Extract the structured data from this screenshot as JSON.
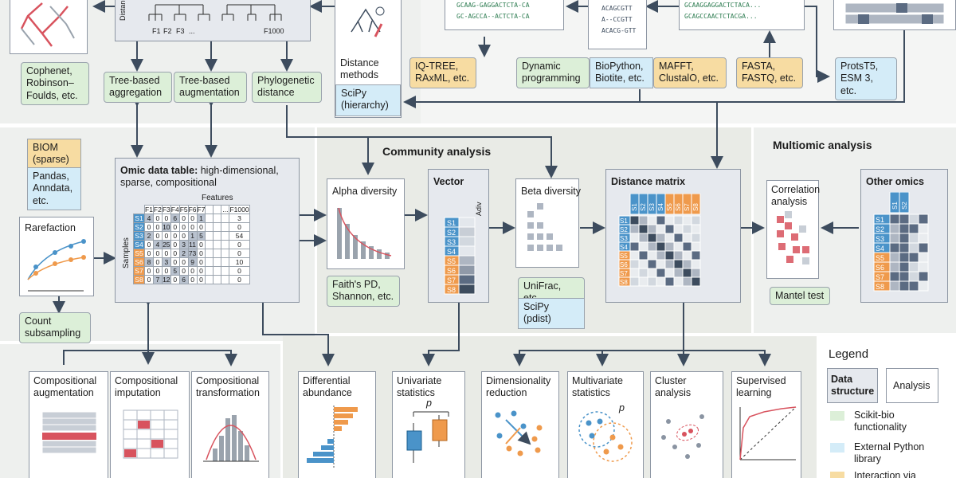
{
  "colors": {
    "green": "#dcefd8",
    "blue": "#d4ecf8",
    "orange": "#f7dca2",
    "panel": "#eef0ee",
    "sample_blue": "#4a93c9",
    "sample_orange": "#ef9a4c",
    "red": "#d8535e"
  },
  "top": {
    "distance_axis": "Distance",
    "tree_labels": [
      "F1",
      "F2",
      "F3",
      "...",
      "F1000"
    ],
    "seq_align_1": [
      "GCAAG-GAGGACTCTA-CA",
      "GC-AGCCA--ACTCTA-CA"
    ],
    "seq_align_2": [
      "ACAGCGTT",
      "A--CCGTT",
      "ACACG-GTT"
    ],
    "seq_raw": [
      "GCAAGGAGGACTCTACA...",
      "GCAGCCAACTCTACGA..."
    ],
    "cophenet": "Cophenet, Robinson–Foulds, etc.",
    "tree_aggregation": "Tree-based aggregation",
    "tree_augmentation": "Tree-based augmentation",
    "phylo_distance": "Phylogenetic distance",
    "distance_methods": "Distance methods",
    "scipy_hierarchy": "SciPy (hierarchy)",
    "iqtree": "IQ-TREE, RAxML, etc.",
    "dynamic_programming": "Dynamic programming",
    "biopython": "BioPython, Biotite, etc.",
    "mafft": "MAFFT, ClustalO, etc.",
    "fasta": "FASTA, FASTQ, etc.",
    "protst5": "ProtsT5, ESM 3, etc."
  },
  "left": {
    "biom": "BIOM (sparse)",
    "pandas": "Pandas, Anndata, etc.",
    "rarefaction": "Rarefaction",
    "count_subsampling": "Count subsampling"
  },
  "omic_table": {
    "title_bold": "Omic data table:",
    "title_rest": " high-dimensional, sparse, compositional",
    "features_label": "Features",
    "samples_label": "Samples",
    "columns": [
      "F1",
      "F2",
      "F3",
      "F4",
      "F5",
      "F6",
      "F7",
      "",
      "",
      "...",
      "F1000"
    ],
    "rows": [
      {
        "id": "S1",
        "g": "b",
        "v": [
          "4",
          "0",
          "0",
          "6",
          "0",
          "0",
          "1",
          "",
          "",
          "",
          "3"
        ]
      },
      {
        "id": "S2",
        "g": "b",
        "v": [
          "0",
          "0",
          "10",
          "0",
          "0",
          "0",
          "0",
          "",
          "",
          "",
          "0"
        ]
      },
      {
        "id": "S3",
        "g": "b",
        "v": [
          "2",
          "0",
          "0",
          "0",
          "0",
          "1",
          "5",
          "",
          "",
          "",
          "54"
        ]
      },
      {
        "id": "S4",
        "g": "b",
        "v": [
          "0",
          "4",
          "25",
          "0",
          "3",
          "11",
          "0",
          "",
          "",
          "",
          "0"
        ]
      },
      {
        "id": "S5",
        "g": "o",
        "v": [
          "0",
          "0",
          "0",
          "0",
          "2",
          "73",
          "0",
          "",
          "",
          "",
          "0"
        ]
      },
      {
        "id": "S6",
        "g": "o",
        "v": [
          "8",
          "0",
          "3",
          "0",
          "0",
          "9",
          "0",
          "",
          "",
          "",
          "10"
        ]
      },
      {
        "id": "S7",
        "g": "o",
        "v": [
          "0",
          "0",
          "0",
          "5",
          "0",
          "0",
          "0",
          "",
          "",
          "",
          "0"
        ]
      },
      {
        "id": "S8",
        "g": "o",
        "v": [
          "0",
          "7",
          "12",
          "0",
          "6",
          "0",
          "0",
          "",
          "",
          "",
          "0"
        ]
      }
    ]
  },
  "community": {
    "title": "Community analysis",
    "alpha": "Alpha diversity",
    "faith": "Faith's PD, Shannon, etc.",
    "vector": "Vector",
    "adiv": "Adiv",
    "beta": "Beta diversity",
    "unifrac": "UniFrac, etc.",
    "scipy_pdist": "SciPy (pdist)",
    "distance_matrix": "Distance matrix",
    "samples": [
      "S1",
      "S2",
      "S3",
      "S4",
      "S5",
      "S6",
      "S7",
      "S8"
    ]
  },
  "multiomic": {
    "title": "Multiomic analysis",
    "correlation": "Correlation analysis",
    "mantel": "Mantel test",
    "other_omics": "Other omics",
    "cols": [
      "S1",
      "S2"
    ]
  },
  "bottom": {
    "comp_aug": "Compositional augmentation",
    "comp_imp": "Compositional imputation",
    "comp_trans": "Compositional transformation",
    "diff_abund": "Differential abundance",
    "univariate": "Univariate statistics",
    "dimred": "Dimensionality reduction",
    "multivariate": "Multivariate statistics",
    "cluster": "Cluster analysis",
    "supervised": "Supervised learning",
    "p_label": "p"
  },
  "legend": {
    "title": "Legend",
    "data_structure": "Data structure",
    "analysis": "Analysis",
    "skbio": "Scikit-bio functionality",
    "external": "External Python library",
    "interaction": "Interaction via"
  }
}
